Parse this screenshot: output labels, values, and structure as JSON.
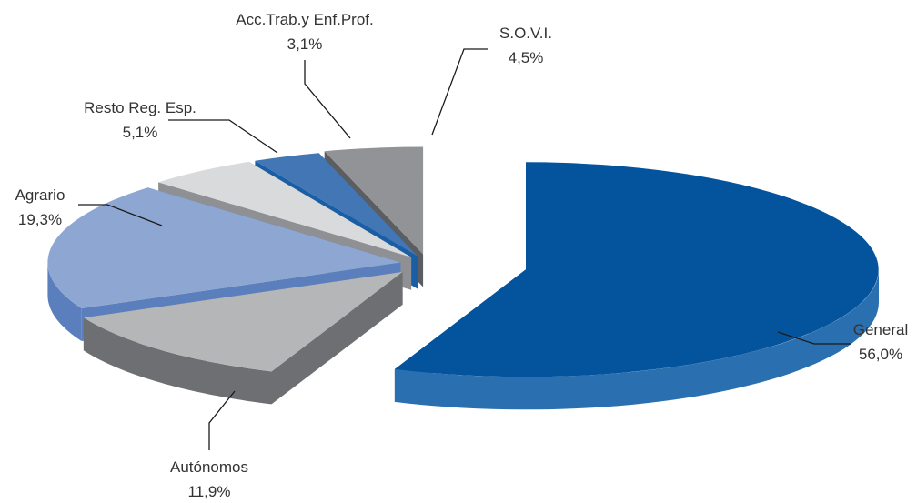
{
  "chart_data": {
    "type": "pie",
    "title": "",
    "legend": "none",
    "slices": [
      {
        "label": "General",
        "value": 56.0,
        "value_label": "56,0%",
        "color": "#04549d",
        "side_color": "#2a6faf"
      },
      {
        "label": "Autónomos",
        "value": 11.9,
        "value_label": "11,9%",
        "color": "#b5b6b8",
        "side_color": "#6e6f72"
      },
      {
        "label": "Agrario",
        "value": 19.3,
        "value_label": "19,3%",
        "color": "#8ea6d2",
        "side_color": "#5b7fbc"
      },
      {
        "label": "Resto Reg. Esp.",
        "value": 5.1,
        "value_label": "5,1%",
        "color": "#d9dadb",
        "side_color": "#8f9093"
      },
      {
        "label": "Acc.Trab.y Enf.Prof.",
        "value": 3.1,
        "value_label": "3,1%",
        "color": "#4276b4",
        "side_color": "#1a5ea6"
      },
      {
        "label": "S.O.V.I.",
        "value": 4.5,
        "value_label": "4,5%",
        "color": "#929396",
        "side_color": "#5c5d60"
      }
    ]
  }
}
